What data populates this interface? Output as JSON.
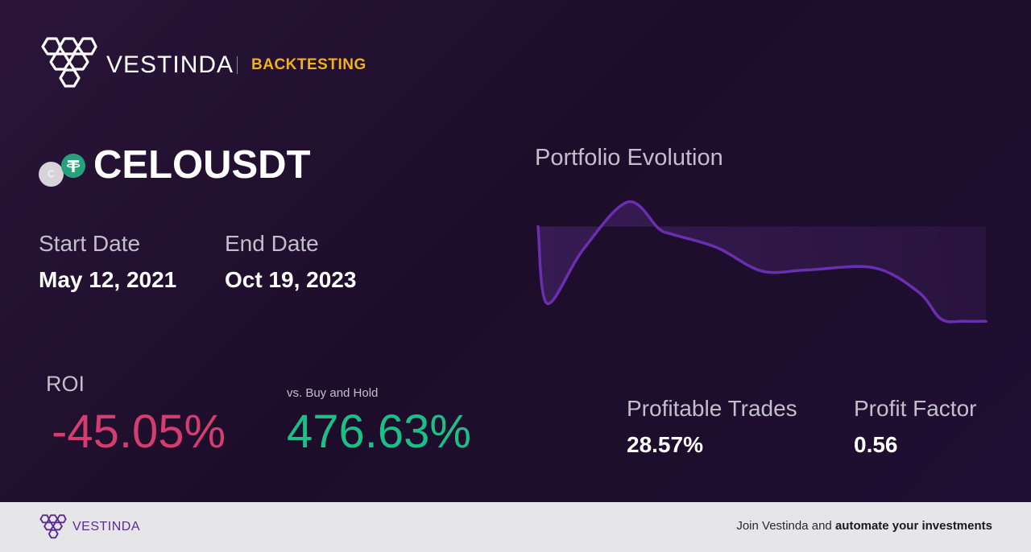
{
  "header": {
    "brand": "VESTINDA",
    "section": "BACKTESTING"
  },
  "pair": {
    "symbol": "CELOUSDT",
    "base_coin_letter": "C",
    "base_icon": "celo-coin-icon",
    "quote_icon": "tether-coin-icon"
  },
  "dates": {
    "start_label": "Start Date",
    "start_value": "May 12, 2021",
    "end_label": "End Date",
    "end_value": "Oct 19, 2023"
  },
  "roi": {
    "label": "ROI",
    "value": "-45.05%",
    "bh_label": "vs. Buy and Hold",
    "bh_value": "476.63%"
  },
  "chart": {
    "title": "Portfolio Evolution"
  },
  "chart_data": {
    "type": "area",
    "title": "Portfolio Evolution",
    "xlabel": "",
    "ylabel": "",
    "grid": false,
    "baseline": 100,
    "x": [
      0,
      0.02,
      0.1,
      0.2,
      0.27,
      0.3,
      0.4,
      0.5,
      0.6,
      0.75,
      0.85,
      0.9,
      0.95,
      1.0
    ],
    "values": [
      100,
      31,
      79,
      122,
      98,
      93,
      81,
      60,
      61,
      63,
      41,
      17,
      15,
      15
    ],
    "colors": {
      "line": "#6a2fb0",
      "fill": "#3a1d57"
    }
  },
  "stats": {
    "profitable_trades_label": "Profitable Trades",
    "profitable_trades_value": "28.57%",
    "profit_factor_label": "Profit Factor",
    "profit_factor_value": "0.56"
  },
  "footer": {
    "brand": "VESTINDA",
    "cta_prefix": "Join Vestinda and ",
    "cta_bold": "automate your investments"
  },
  "colors": {
    "accent": "#f1b119",
    "negative": "#d33d6f",
    "positive": "#1bbf87",
    "chart_line": "#6a2fb0",
    "footer_brand": "#5b2a93"
  }
}
